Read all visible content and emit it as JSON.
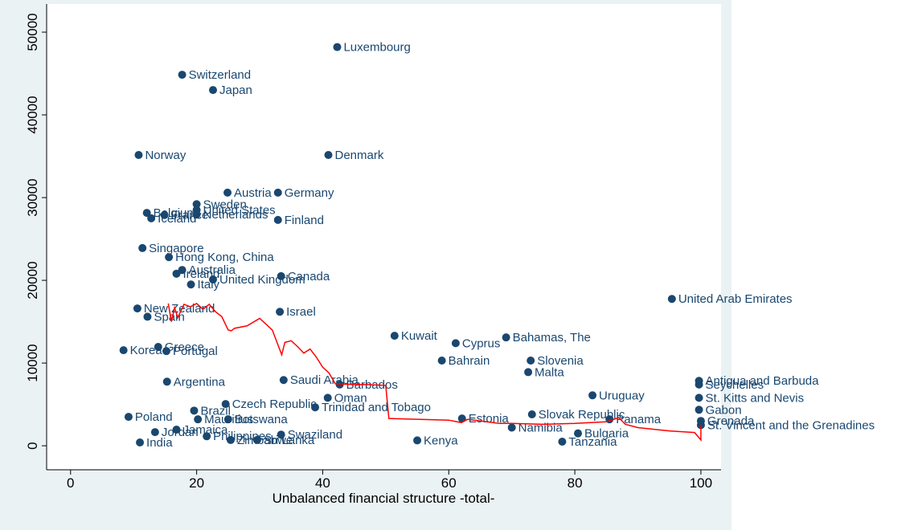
{
  "chart_data": {
    "type": "scatter",
    "x_label": "Unbalanced financial structure -total-",
    "xlim": [
      -3.8,
      103.2
    ],
    "ylim": [
      -2900,
      53400
    ],
    "xticks": [
      0,
      20,
      40,
      60,
      80,
      100
    ],
    "yticks": [
      0,
      10000,
      20000,
      30000,
      40000,
      50000
    ],
    "series": [
      {
        "color": "#1a476f",
        "labels": [
          "Luxembourg",
          "Switzerland",
          "Japan",
          "Norway",
          "Denmark",
          "Austria",
          "Germany",
          "Sweden",
          "United States",
          "Netherlands",
          "Finland",
          "Belgium",
          "France",
          "Iceland",
          "Singapore",
          "Hong Kong, China",
          "Australia",
          "Ireland",
          "United Kingdom",
          "Italy",
          "Canada",
          "New Zealand",
          "Spain",
          "Israel",
          "United Arab Emirates",
          "Kuwait",
          "Cyprus",
          "Bahamas, The",
          "Bahrain",
          "Slovenia",
          "Malta",
          "Korea",
          "Greece",
          "Portugal",
          "Argentina",
          "Saudi Arabia",
          "Barbados",
          "Oman",
          "Uruguay",
          "Antigua and Barbuda",
          "Seychelles",
          "St. Kitts and Nevis",
          "Gabon",
          "Slovak Republic",
          "Estonia",
          "Czech Republic",
          "Brazil",
          "Poland",
          "Jordan",
          "Jamaica",
          "India",
          "Philippines",
          "Zimbabwe",
          "Sri Lanka",
          "Swaziland",
          "Trinidad and Tobago",
          "Mauritius",
          "Botswana",
          "Panama",
          "Namibia",
          "Bulgaria",
          "Kenya",
          "Tanzania",
          "Grenada",
          "St. Vincent and the Grenadines"
        ],
        "x": [
          42.3,
          17.7,
          22.6,
          10.8,
          40.9,
          24.9,
          32.9,
          20.0,
          20.0,
          20.0,
          32.9,
          12.1,
          14.9,
          12.8,
          11.4,
          15.6,
          17.7,
          16.8,
          22.6,
          19.1,
          33.4,
          10.6,
          12.2,
          33.2,
          95.4,
          51.4,
          61.1,
          69.1,
          58.9,
          73.0,
          72.6,
          8.4,
          13.9,
          15.2,
          15.3,
          33.8,
          42.7,
          40.8,
          82.8,
          99.7,
          99.7,
          99.7,
          99.7,
          73.2,
          62.1,
          24.6,
          19.6,
          9.2,
          13.4,
          16.8,
          11.0,
          21.6,
          25.4,
          29.6,
          33.4,
          38.8,
          20.2,
          25.0,
          85.5,
          70.0,
          80.5,
          55.0,
          78.0,
          100,
          100
        ],
        "values": [
          48200,
          44850,
          43000,
          35150,
          35150,
          30600,
          30600,
          29200,
          28500,
          27950,
          27300,
          28150,
          27900,
          27500,
          23900,
          22800,
          21250,
          20800,
          20100,
          19500,
          20500,
          16600,
          15600,
          16200,
          17750,
          13300,
          12400,
          13100,
          10300,
          10300,
          8900,
          11550,
          11950,
          11450,
          7750,
          7950,
          7400,
          5800,
          6100,
          7850,
          7400,
          5800,
          4350,
          3800,
          3300,
          5050,
          4250,
          3500,
          1650,
          1950,
          400,
          1150,
          700,
          700,
          1350,
          4650,
          3200,
          3200,
          3200,
          2200,
          1500,
          650,
          500,
          3000,
          2500
        ]
      },
      {
        "type": "line",
        "color": "#ff0000",
        "x": [
          15.5,
          16,
          16.5,
          17,
          18,
          19,
          20,
          21,
          22,
          23,
          24,
          25,
          25.5,
          26,
          28,
          30,
          32,
          33,
          33.5,
          34,
          35,
          36,
          37,
          38,
          39,
          40,
          41,
          42,
          45,
          47,
          50,
          50.5,
          55,
          60,
          62,
          63,
          66,
          68,
          70,
          75,
          80,
          85,
          87,
          88,
          90,
          95,
          99,
          100,
          100
        ],
        "values": [
          17200,
          15000,
          16700,
          15500,
          17100,
          16800,
          17200,
          16500,
          17100,
          16200,
          15600,
          14000,
          13900,
          14200,
          14500,
          15400,
          14000,
          12000,
          11000,
          12500,
          12700,
          12000,
          11200,
          11700,
          10700,
          9500,
          8800,
          7500,
          7400,
          7400,
          7300,
          3300,
          3200,
          3100,
          2800,
          3200,
          2900,
          2700,
          2700,
          2600,
          2700,
          2900,
          3400,
          2600,
          2200,
          1800,
          1600,
          700,
          2500
        ]
      }
    ]
  }
}
